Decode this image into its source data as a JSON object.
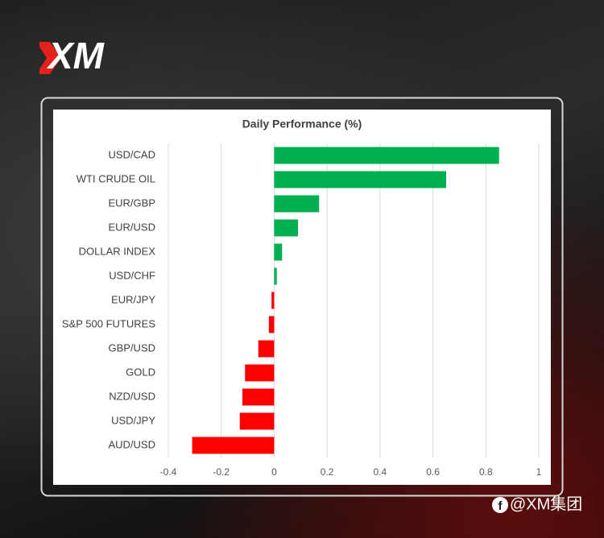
{
  "logo": "XM",
  "watermark": "@XM集团",
  "chart_data": {
    "type": "hbar",
    "title": "Daily Performance (%)",
    "categories": [
      "USD/CAD",
      "WTI CRUDE OIL",
      "EUR/GBP",
      "EUR/USD",
      "DOLLAR INDEX",
      "USD/CHF",
      "EUR/JPY",
      "S&P 500 FUTURES",
      "GBP/USD",
      "GOLD",
      "NZD/USD",
      "USD/JPY",
      "AUD/USD"
    ],
    "values": [
      0.85,
      0.65,
      0.17,
      0.09,
      0.03,
      0.01,
      -0.01,
      -0.02,
      -0.06,
      -0.11,
      -0.12,
      -0.13,
      -0.31
    ],
    "positive_color": "#00b050",
    "negative_color": "#ff0000",
    "xlim": [
      -0.4,
      1
    ],
    "xticks": [
      -0.4,
      -0.2,
      0,
      0.2,
      0.4,
      0.6,
      0.8,
      1
    ],
    "grid": true
  }
}
